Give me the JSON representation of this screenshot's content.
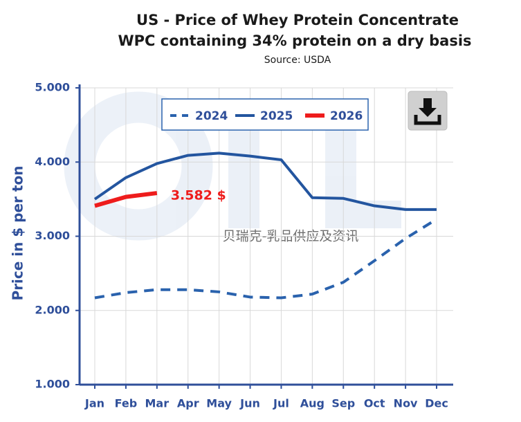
{
  "chart_data": {
    "type": "line",
    "title": "US - Price of Whey Protein Concentrate",
    "subtitle": "WPC containing 34% protein on a dry basis",
    "source": "Source: USDA",
    "y_label": "Price in $ per ton",
    "watermark": "贝瑞克-乳品供应及资讯",
    "categories": [
      "Jan",
      "Feb",
      "Mar",
      "Apr",
      "May",
      "Jun",
      "Jul",
      "Aug",
      "Sep",
      "Oct",
      "Nov",
      "Dec"
    ],
    "series": [
      {
        "name": "2024",
        "color": "#2a62ad",
        "dashed": true,
        "values": [
          2170,
          2240,
          2280,
          2280,
          2250,
          2180,
          2170,
          2220,
          2380,
          2670,
          2970,
          3230
        ]
      },
      {
        "name": "2025",
        "color": "#23559f",
        "dashed": false,
        "values": [
          3500,
          3790,
          3980,
          4090,
          4120,
          4080,
          4030,
          3520,
          3510,
          3410,
          3360,
          3360
        ]
      },
      {
        "name": "2026",
        "color": "#ee1c1c",
        "dashed": false,
        "values": [
          3410,
          3530,
          3582,
          null,
          null,
          null,
          null,
          null,
          null,
          null,
          null,
          null
        ],
        "value_labels": [
          null,
          null,
          "3.582 $",
          null,
          null,
          null,
          null,
          null,
          null,
          null,
          null,
          null
        ]
      }
    ],
    "ylim": [
      1000,
      5000
    ],
    "yticks": [
      {
        "value": 1000,
        "label": "1.000"
      },
      {
        "value": 2000,
        "label": "2.000"
      },
      {
        "value": 3000,
        "label": "3.000"
      },
      {
        "value": 4000,
        "label": "4.000"
      },
      {
        "value": 5000,
        "label": "5.000"
      }
    ],
    "grid": true
  }
}
